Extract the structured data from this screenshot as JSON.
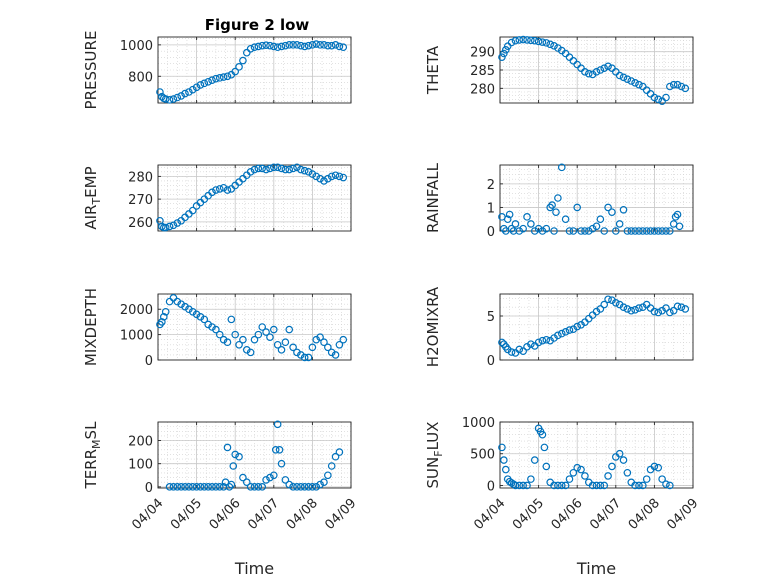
{
  "figure": {
    "title": "Figure 2 low",
    "marker_color": "#0072bd"
  },
  "chart_data": [
    {
      "type": "scatter",
      "ylabel": "PRESSURE",
      "xlabel": "",
      "xlim": [
        0,
        5
      ],
      "ylim": [
        630,
        1050
      ],
      "yticks": [
        800,
        1000
      ],
      "xticks": [
        0,
        1,
        2,
        3,
        4,
        5
      ],
      "xtick_labels": [],
      "grid": true,
      "x": [
        0.05,
        0.1,
        0.15,
        0.2,
        0.3,
        0.4,
        0.5,
        0.6,
        0.7,
        0.8,
        0.9,
        1.0,
        1.1,
        1.2,
        1.3,
        1.4,
        1.5,
        1.6,
        1.7,
        1.8,
        1.9,
        2.0,
        2.1,
        2.2,
        2.3,
        2.4,
        2.5,
        2.6,
        2.7,
        2.8,
        2.9,
        3.0,
        3.1,
        3.2,
        3.3,
        3.4,
        3.5,
        3.6,
        3.7,
        3.8,
        3.9,
        4.0,
        4.1,
        4.2,
        4.3,
        4.4,
        4.5,
        4.6,
        4.7,
        4.8
      ],
      "y": [
        700,
        670,
        660,
        655,
        650,
        655,
        665,
        675,
        690,
        700,
        715,
        730,
        745,
        755,
        765,
        775,
        785,
        790,
        795,
        800,
        810,
        830,
        860,
        900,
        950,
        975,
        985,
        990,
        995,
        998,
        995,
        990,
        985,
        990,
        995,
        1000,
        1000,
        1000,
        995,
        990,
        995,
        1000,
        1005,
        1000,
        1000,
        995,
        995,
        1000,
        990,
        985
      ]
    },
    {
      "type": "scatter",
      "ylabel": "THETA",
      "xlabel": "",
      "xlim": [
        0,
        5
      ],
      "ylim": [
        276,
        294
      ],
      "yticks": [
        280,
        285,
        290
      ],
      "xticks": [
        0,
        1,
        2,
        3,
        4,
        5
      ],
      "xtick_labels": [],
      "grid": true,
      "x": [
        0.05,
        0.1,
        0.15,
        0.2,
        0.3,
        0.4,
        0.5,
        0.6,
        0.7,
        0.8,
        0.9,
        1.0,
        1.1,
        1.2,
        1.3,
        1.4,
        1.5,
        1.6,
        1.7,
        1.8,
        1.9,
        2.0,
        2.1,
        2.2,
        2.3,
        2.4,
        2.5,
        2.6,
        2.7,
        2.8,
        2.9,
        3.0,
        3.1,
        3.2,
        3.3,
        3.4,
        3.5,
        3.6,
        3.7,
        3.8,
        3.9,
        4.0,
        4.1,
        4.2,
        4.3,
        4.4,
        4.5,
        4.6,
        4.7,
        4.8
      ],
      "y": [
        288.5,
        289.5,
        290.5,
        291.5,
        292.5,
        293,
        293.2,
        293.3,
        293.2,
        293.1,
        293,
        292.8,
        292.6,
        292.4,
        292,
        291.6,
        291,
        290.3,
        289.5,
        288.5,
        287.5,
        286.5,
        285.5,
        284.5,
        284,
        283.8,
        284.5,
        285,
        285.5,
        286,
        285.5,
        284.5,
        283.5,
        283,
        282.5,
        282,
        281.5,
        281,
        280.5,
        279.5,
        278.5,
        277.5,
        277,
        276.5,
        277.5,
        280.5,
        281,
        281,
        280.5,
        280
      ]
    },
    {
      "type": "scatter",
      "ylabel": "AIR_TEMP",
      "xlabel": "",
      "xlim": [
        0,
        5
      ],
      "ylim": [
        256,
        285
      ],
      "yticks": [
        260,
        270,
        280
      ],
      "xticks": [
        0,
        1,
        2,
        3,
        4,
        5
      ],
      "xtick_labels": [],
      "grid": true,
      "x": [
        0.05,
        0.1,
        0.15,
        0.2,
        0.3,
        0.4,
        0.5,
        0.6,
        0.7,
        0.8,
        0.9,
        1.0,
        1.1,
        1.2,
        1.3,
        1.4,
        1.5,
        1.6,
        1.7,
        1.8,
        1.9,
        2.0,
        2.1,
        2.2,
        2.3,
        2.4,
        2.5,
        2.6,
        2.7,
        2.8,
        2.9,
        3.0,
        3.1,
        3.2,
        3.3,
        3.4,
        3.5,
        3.6,
        3.7,
        3.8,
        3.9,
        4.0,
        4.1,
        4.2,
        4.3,
        4.4,
        4.5,
        4.6,
        4.7,
        4.8
      ],
      "y": [
        260.5,
        258,
        257.5,
        257.5,
        258,
        258.5,
        259.5,
        260.5,
        262,
        263.5,
        265,
        267,
        268.5,
        270,
        271.5,
        273,
        274,
        274.5,
        275,
        274,
        274.5,
        276,
        277.5,
        279,
        280.5,
        282,
        283,
        283.5,
        283.5,
        283,
        283.5,
        284,
        284,
        283.5,
        283,
        283,
        283.5,
        284,
        283,
        282.5,
        282,
        281,
        280,
        279,
        278,
        279,
        280,
        280.5,
        280,
        279.5
      ]
    },
    {
      "type": "scatter",
      "ylabel": "RAINFALL",
      "xlabel": "",
      "xlim": [
        0,
        5
      ],
      "ylim": [
        0,
        2.8
      ],
      "yticks": [
        0,
        1,
        2
      ],
      "xticks": [
        0,
        1,
        2,
        3,
        4,
        5
      ],
      "xtick_labels": [],
      "grid": true,
      "x": [
        0.05,
        0.1,
        0.15,
        0.2,
        0.25,
        0.3,
        0.35,
        0.4,
        0.5,
        0.6,
        0.7,
        0.8,
        0.9,
        1.0,
        1.1,
        1.2,
        1.3,
        1.35,
        1.4,
        1.45,
        1.5,
        1.6,
        1.7,
        1.8,
        1.9,
        2.0,
        2.1,
        2.2,
        2.3,
        2.4,
        2.5,
        2.6,
        2.7,
        2.8,
        2.9,
        3.0,
        3.1,
        3.2,
        3.3,
        3.4,
        3.5,
        3.6,
        3.7,
        3.8,
        3.9,
        4.0,
        4.1,
        4.2,
        4.3,
        4.4,
        4.5,
        4.55,
        4.6,
        4.65
      ],
      "y": [
        0.6,
        0.1,
        0.0,
        0.5,
        0.7,
        0.1,
        0.0,
        0.3,
        0.0,
        0.1,
        0.6,
        0.3,
        0.0,
        0.1,
        0.0,
        0.1,
        1.0,
        1.1,
        0.0,
        0.8,
        1.4,
        2.7,
        0.5,
        0.0,
        0.0,
        1.0,
        0.0,
        0.0,
        0.0,
        0.1,
        0.2,
        0.5,
        0.0,
        1.0,
        0.8,
        0.0,
        0.3,
        0.9,
        0.0,
        0.0,
        0.0,
        0.0,
        0.0,
        0.0,
        0.0,
        0.0,
        0.0,
        0.0,
        0.0,
        0.0,
        0.3,
        0.6,
        0.7,
        0.2
      ]
    },
    {
      "type": "scatter",
      "ylabel": "MIXDEPTH",
      "xlabel": "",
      "xlim": [
        0,
        5
      ],
      "ylim": [
        0,
        2600
      ],
      "yticks": [
        0,
        1000,
        2000
      ],
      "xticks": [
        0,
        1,
        2,
        3,
        4,
        5
      ],
      "xtick_labels": [],
      "grid": true,
      "x": [
        0.05,
        0.1,
        0.15,
        0.2,
        0.3,
        0.4,
        0.5,
        0.6,
        0.7,
        0.8,
        0.9,
        1.0,
        1.1,
        1.2,
        1.3,
        1.4,
        1.5,
        1.6,
        1.7,
        1.8,
        1.9,
        2.0,
        2.1,
        2.2,
        2.3,
        2.4,
        2.5,
        2.6,
        2.7,
        2.8,
        2.9,
        3.0,
        3.1,
        3.2,
        3.3,
        3.4,
        3.5,
        3.6,
        3.7,
        3.8,
        3.9,
        4.0,
        4.1,
        4.2,
        4.3,
        4.4,
        4.5,
        4.6,
        4.7,
        4.8
      ],
      "y": [
        1400,
        1500,
        1700,
        1900,
        2300,
        2450,
        2300,
        2200,
        2100,
        2000,
        1900,
        1800,
        1700,
        1600,
        1400,
        1300,
        1200,
        1000,
        800,
        700,
        1600,
        1000,
        600,
        800,
        400,
        300,
        800,
        1000,
        1300,
        1100,
        900,
        1200,
        600,
        400,
        700,
        1200,
        500,
        300,
        200,
        100,
        100,
        500,
        800,
        900,
        700,
        500,
        300,
        200,
        600,
        800
      ]
    },
    {
      "type": "scatter",
      "ylabel": "H2OMIXRA",
      "xlabel": "",
      "xlim": [
        0,
        5
      ],
      "ylim": [
        0,
        7.5
      ],
      "yticks": [
        0,
        5
      ],
      "xticks": [
        0,
        1,
        2,
        3,
        4,
        5
      ],
      "xtick_labels": [],
      "grid": true,
      "x": [
        0.05,
        0.1,
        0.15,
        0.2,
        0.3,
        0.4,
        0.5,
        0.6,
        0.7,
        0.8,
        0.9,
        1.0,
        1.1,
        1.2,
        1.3,
        1.4,
        1.5,
        1.6,
        1.7,
        1.8,
        1.9,
        2.0,
        2.1,
        2.2,
        2.3,
        2.4,
        2.5,
        2.6,
        2.7,
        2.8,
        2.9,
        3.0,
        3.1,
        3.2,
        3.3,
        3.4,
        3.5,
        3.6,
        3.7,
        3.8,
        3.9,
        4.0,
        4.1,
        4.2,
        4.3,
        4.4,
        4.5,
        4.6,
        4.7,
        4.8
      ],
      "y": [
        2.0,
        1.8,
        1.5,
        1.2,
        0.9,
        0.8,
        1.2,
        1.0,
        1.5,
        1.8,
        1.6,
        2.0,
        2.2,
        2.3,
        2.2,
        2.5,
        2.8,
        3.0,
        3.2,
        3.4,
        3.5,
        3.8,
        4.0,
        4.3,
        4.7,
        5.1,
        5.5,
        5.8,
        6.3,
        6.9,
        6.8,
        6.5,
        6.3,
        6.0,
        5.8,
        5.6,
        5.7,
        5.9,
        6.0,
        6.3,
        5.9,
        5.5,
        5.4,
        5.6,
        5.9,
        5.4,
        5.6,
        6.1,
        6.0,
        5.8
      ]
    },
    {
      "type": "scatter",
      "ylabel": "TERR_MSL",
      "xlabel": "Time",
      "xlim": [
        0,
        5
      ],
      "ylim": [
        -5,
        280
      ],
      "yticks": [
        0,
        100,
        200
      ],
      "xticks": [
        0,
        1,
        2,
        3,
        4,
        5
      ],
      "xtick_labels": [
        "04/04",
        "04/05",
        "04/06",
        "04/07",
        "04/08",
        "04/09"
      ],
      "grid": true,
      "x": [
        0.3,
        0.4,
        0.5,
        0.6,
        0.7,
        0.8,
        0.9,
        1.0,
        1.1,
        1.2,
        1.3,
        1.4,
        1.5,
        1.6,
        1.7,
        1.75,
        1.8,
        1.85,
        1.9,
        1.95,
        2.0,
        2.1,
        2.2,
        2.3,
        2.4,
        2.5,
        2.6,
        2.7,
        2.8,
        2.9,
        3.0,
        3.05,
        3.1,
        3.15,
        3.2,
        3.3,
        3.4,
        3.5,
        3.6,
        3.7,
        3.8,
        3.9,
        4.0,
        4.1,
        4.2,
        4.3,
        4.4,
        4.5,
        4.6,
        4.7
      ],
      "y": [
        0,
        0,
        0,
        0,
        0,
        0,
        0,
        0,
        0,
        0,
        0,
        0,
        0,
        0,
        0,
        20,
        170,
        0,
        10,
        90,
        140,
        130,
        40,
        20,
        0,
        0,
        0,
        0,
        30,
        40,
        50,
        160,
        270,
        160,
        100,
        30,
        10,
        0,
        0,
        0,
        0,
        0,
        0,
        0,
        10,
        20,
        50,
        90,
        130,
        150
      ]
    },
    {
      "type": "scatter",
      "ylabel": "SUN_FLUX",
      "xlabel": "Time",
      "xlim": [
        0,
        5
      ],
      "ylim": [
        -40,
        1000
      ],
      "yticks": [
        0,
        500,
        1000
      ],
      "xticks": [
        0,
        1,
        2,
        3,
        4,
        5
      ],
      "xtick_labels": [
        "04/04",
        "04/05",
        "04/06",
        "04/07",
        "04/08",
        "04/09"
      ],
      "grid": true,
      "x": [
        0.05,
        0.1,
        0.15,
        0.2,
        0.25,
        0.3,
        0.35,
        0.4,
        0.5,
        0.6,
        0.7,
        0.8,
        0.9,
        1.0,
        1.05,
        1.1,
        1.15,
        1.2,
        1.3,
        1.4,
        1.5,
        1.6,
        1.7,
        1.8,
        1.9,
        2.0,
        2.1,
        2.2,
        2.3,
        2.4,
        2.5,
        2.6,
        2.7,
        2.8,
        2.9,
        3.0,
        3.1,
        3.2,
        3.3,
        3.4,
        3.5,
        3.6,
        3.7,
        3.8,
        3.9,
        4.0,
        4.1,
        4.2,
        4.3,
        4.4
      ],
      "y": [
        600,
        400,
        250,
        100,
        60,
        40,
        20,
        0,
        0,
        0,
        0,
        100,
        400,
        900,
        850,
        800,
        600,
        300,
        50,
        0,
        0,
        0,
        0,
        100,
        200,
        280,
        250,
        150,
        50,
        0,
        0,
        0,
        0,
        150,
        300,
        450,
        500,
        400,
        200,
        50,
        0,
        0,
        0,
        100,
        250,
        300,
        280,
        100,
        20,
        0
      ]
    }
  ]
}
